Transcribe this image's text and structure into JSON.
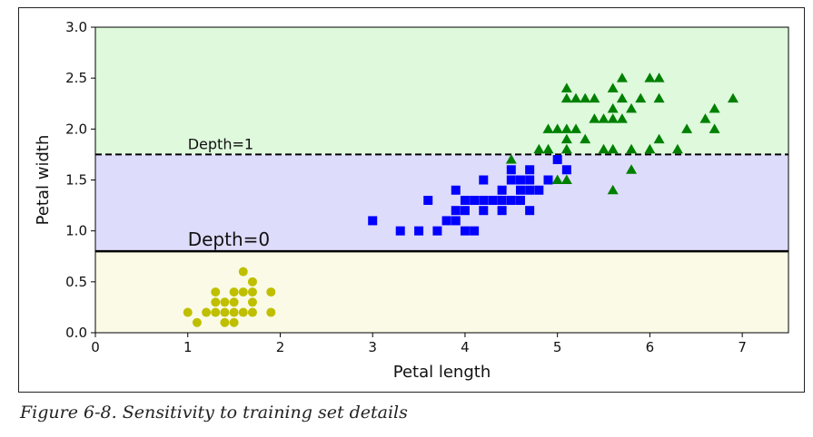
{
  "caption": "Figure 6-8. Sensitivity to training set details",
  "chart_data": {
    "type": "scatter",
    "xlabel": "Petal length",
    "ylabel": "Petal width",
    "xlim": [
      0,
      7.5
    ],
    "ylim": [
      0,
      3.0
    ],
    "xticks": [
      "0",
      "1",
      "2",
      "3",
      "4",
      "5",
      "6",
      "7"
    ],
    "yticks": [
      "0.0",
      "0.5",
      "1.0",
      "1.5",
      "2.0",
      "2.5",
      "3.0"
    ],
    "grid": false,
    "regions": [
      {
        "y_from": 0.0,
        "y_to": 0.8,
        "color": "#fafae6"
      },
      {
        "y_from": 0.8,
        "y_to": 1.75,
        "color": "#dedcfb"
      },
      {
        "y_from": 1.75,
        "y_to": 3.0,
        "color": "#def9dc"
      }
    ],
    "thresholds": [
      {
        "y": 0.8,
        "label": "Depth=0",
        "style": "solid",
        "label_x": 1.0
      },
      {
        "y": 1.75,
        "label": "Depth=1",
        "style": "dashed",
        "label_x": 1.0
      }
    ],
    "series": [
      {
        "marker": "circle",
        "color": "#bfbf00",
        "points": [
          [
            1.0,
            0.2
          ],
          [
            1.1,
            0.1
          ],
          [
            1.2,
            0.2
          ],
          [
            1.3,
            0.2
          ],
          [
            1.3,
            0.3
          ],
          [
            1.3,
            0.4
          ],
          [
            1.4,
            0.1
          ],
          [
            1.4,
            0.2
          ],
          [
            1.4,
            0.3
          ],
          [
            1.5,
            0.1
          ],
          [
            1.5,
            0.2
          ],
          [
            1.5,
            0.3
          ],
          [
            1.5,
            0.4
          ],
          [
            1.6,
            0.2
          ],
          [
            1.6,
            0.4
          ],
          [
            1.6,
            0.6
          ],
          [
            1.7,
            0.2
          ],
          [
            1.7,
            0.3
          ],
          [
            1.7,
            0.4
          ],
          [
            1.7,
            0.5
          ],
          [
            1.9,
            0.2
          ],
          [
            1.9,
            0.4
          ]
        ]
      },
      {
        "marker": "square",
        "color": "#0000ff",
        "points": [
          [
            3.0,
            1.1
          ],
          [
            3.3,
            1.0
          ],
          [
            3.5,
            1.0
          ],
          [
            3.6,
            1.3
          ],
          [
            3.7,
            1.0
          ],
          [
            3.8,
            1.1
          ],
          [
            3.9,
            1.1
          ],
          [
            3.9,
            1.2
          ],
          [
            3.9,
            1.4
          ],
          [
            4.0,
            1.0
          ],
          [
            4.0,
            1.2
          ],
          [
            4.0,
            1.3
          ],
          [
            4.1,
            1.0
          ],
          [
            4.1,
            1.3
          ],
          [
            4.2,
            1.2
          ],
          [
            4.2,
            1.3
          ],
          [
            4.2,
            1.5
          ],
          [
            4.3,
            1.3
          ],
          [
            4.4,
            1.2
          ],
          [
            4.4,
            1.3
          ],
          [
            4.4,
            1.4
          ],
          [
            4.5,
            1.3
          ],
          [
            4.5,
            1.5
          ],
          [
            4.5,
            1.6
          ],
          [
            4.6,
            1.3
          ],
          [
            4.6,
            1.4
          ],
          [
            4.6,
            1.5
          ],
          [
            4.7,
            1.2
          ],
          [
            4.7,
            1.4
          ],
          [
            4.7,
            1.5
          ],
          [
            4.7,
            1.6
          ],
          [
            4.8,
            1.4
          ],
          [
            4.9,
            1.5
          ],
          [
            5.0,
            1.7
          ],
          [
            5.1,
            1.6
          ]
        ]
      },
      {
        "marker": "triangle",
        "color": "#008000",
        "points": [
          [
            4.5,
            1.7
          ],
          [
            4.8,
            1.8
          ],
          [
            4.9,
            1.8
          ],
          [
            4.9,
            2.0
          ],
          [
            5.0,
            1.5
          ],
          [
            5.0,
            2.0
          ],
          [
            5.1,
            1.5
          ],
          [
            5.1,
            1.8
          ],
          [
            5.1,
            1.9
          ],
          [
            5.1,
            2.0
          ],
          [
            5.1,
            2.3
          ],
          [
            5.1,
            2.4
          ],
          [
            5.2,
            2.0
          ],
          [
            5.2,
            2.3
          ],
          [
            5.3,
            1.9
          ],
          [
            5.3,
            2.3
          ],
          [
            5.4,
            2.1
          ],
          [
            5.4,
            2.3
          ],
          [
            5.5,
            1.8
          ],
          [
            5.5,
            2.1
          ],
          [
            5.6,
            1.4
          ],
          [
            5.6,
            1.8
          ],
          [
            5.6,
            2.1
          ],
          [
            5.6,
            2.2
          ],
          [
            5.6,
            2.4
          ],
          [
            5.7,
            2.1
          ],
          [
            5.7,
            2.3
          ],
          [
            5.7,
            2.5
          ],
          [
            5.8,
            1.6
          ],
          [
            5.8,
            1.8
          ],
          [
            5.8,
            2.2
          ],
          [
            5.9,
            2.3
          ],
          [
            6.0,
            1.8
          ],
          [
            6.0,
            2.5
          ],
          [
            6.1,
            1.9
          ],
          [
            6.1,
            2.3
          ],
          [
            6.1,
            2.5
          ],
          [
            6.3,
            1.8
          ],
          [
            6.4,
            2.0
          ],
          [
            6.6,
            2.1
          ],
          [
            6.7,
            2.0
          ],
          [
            6.7,
            2.2
          ],
          [
            6.9,
            2.3
          ]
        ]
      }
    ]
  }
}
